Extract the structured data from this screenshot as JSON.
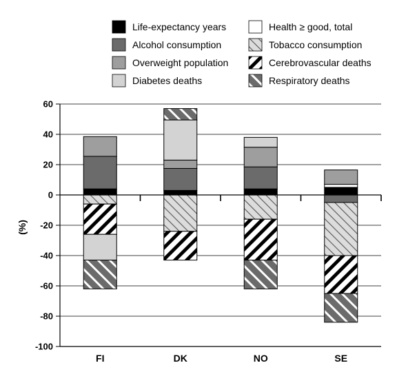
{
  "chart_data": {
    "type": "bar",
    "stacked": true,
    "title": "",
    "xlabel": "",
    "ylabel": "(%)",
    "ylim": [
      -100,
      60
    ],
    "yticks": [
      60,
      40,
      20,
      0,
      -20,
      -40,
      -60,
      -80,
      -100
    ],
    "grid": true,
    "legend_position": "top",
    "categories": [
      "FI",
      "DK",
      "NO",
      "SE"
    ],
    "series": [
      {
        "name": "Life-expectancy years",
        "pattern": "solid-black",
        "values": [
          4,
          3,
          4,
          5
        ]
      },
      {
        "name": "Health ≥ good, total",
        "pattern": "solid-white",
        "values": [
          0,
          0,
          0,
          2
        ]
      },
      {
        "name": "Alcohol consumption",
        "pattern": "solid-dark-gray",
        "values": [
          21.5,
          14.5,
          14.5,
          -5
        ]
      },
      {
        "name": "Tobacco consumption",
        "pattern": "light-diagonal-hatch",
        "values": [
          -6,
          -24,
          -16,
          -35
        ]
      },
      {
        "name": "Overweight population",
        "pattern": "solid-mid-gray",
        "values": [
          13,
          5.5,
          13,
          9.5
        ]
      },
      {
        "name": "Cerebrovascular deaths",
        "pattern": "black-white-diagonal-stripes",
        "values": [
          -20,
          -19,
          -27,
          -25
        ]
      },
      {
        "name": "Diabetes deaths",
        "pattern": "solid-light-gray",
        "values": [
          -17,
          26.5,
          6.5,
          0
        ]
      },
      {
        "name": "Respiratory deaths",
        "pattern": "dark-diagonal-hatch",
        "values": [
          -19,
          7.5,
          -19,
          -19
        ]
      }
    ]
  },
  "colors": {
    "black": "#000000",
    "dark_gray": "#6b6b6b",
    "mid_gray": "#9e9e9e",
    "light_gray": "#d3d3d3",
    "very_light": "#ececec",
    "hatch_bg": "#dcdcdc",
    "resp_bg": "#6b6b6b"
  }
}
